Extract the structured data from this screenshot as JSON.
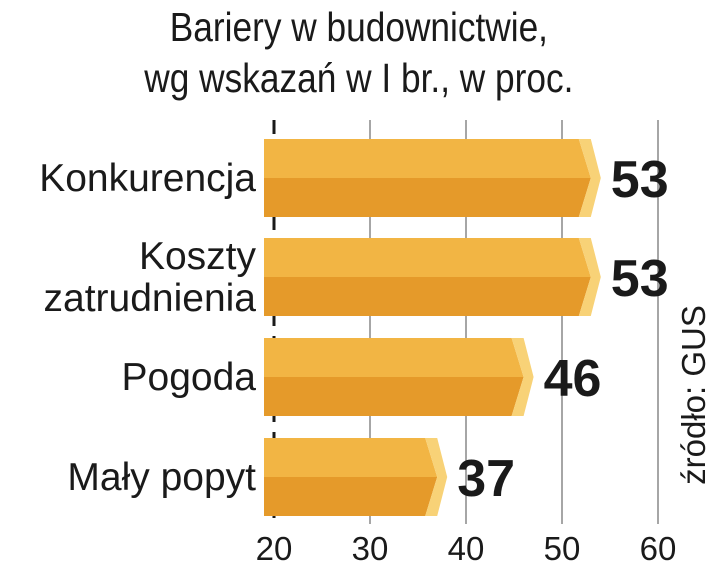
{
  "chart_data": {
    "type": "bar",
    "orientation": "horizontal",
    "title_lines": [
      "Bariery w budownictwie,",
      "wg wskazań w I br., w proc."
    ],
    "categories": [
      [
        "Konkurencja"
      ],
      [
        "Koszty",
        "zatrudnienia"
      ],
      [
        "Pogoda"
      ],
      [
        "Mały popyt"
      ]
    ],
    "values": [
      53,
      53,
      46,
      37
    ],
    "xlim": [
      20,
      60
    ],
    "xticks": [
      "20",
      "30",
      "40",
      "50",
      "60"
    ],
    "grid": true,
    "source": "źródło: GUS",
    "colors": {
      "bar_top": "#f2b544",
      "bar_bottom": "#e59a2a",
      "bar_tip": "#f8d277",
      "grid": "#888888",
      "axis": "#1a1a1a"
    }
  }
}
